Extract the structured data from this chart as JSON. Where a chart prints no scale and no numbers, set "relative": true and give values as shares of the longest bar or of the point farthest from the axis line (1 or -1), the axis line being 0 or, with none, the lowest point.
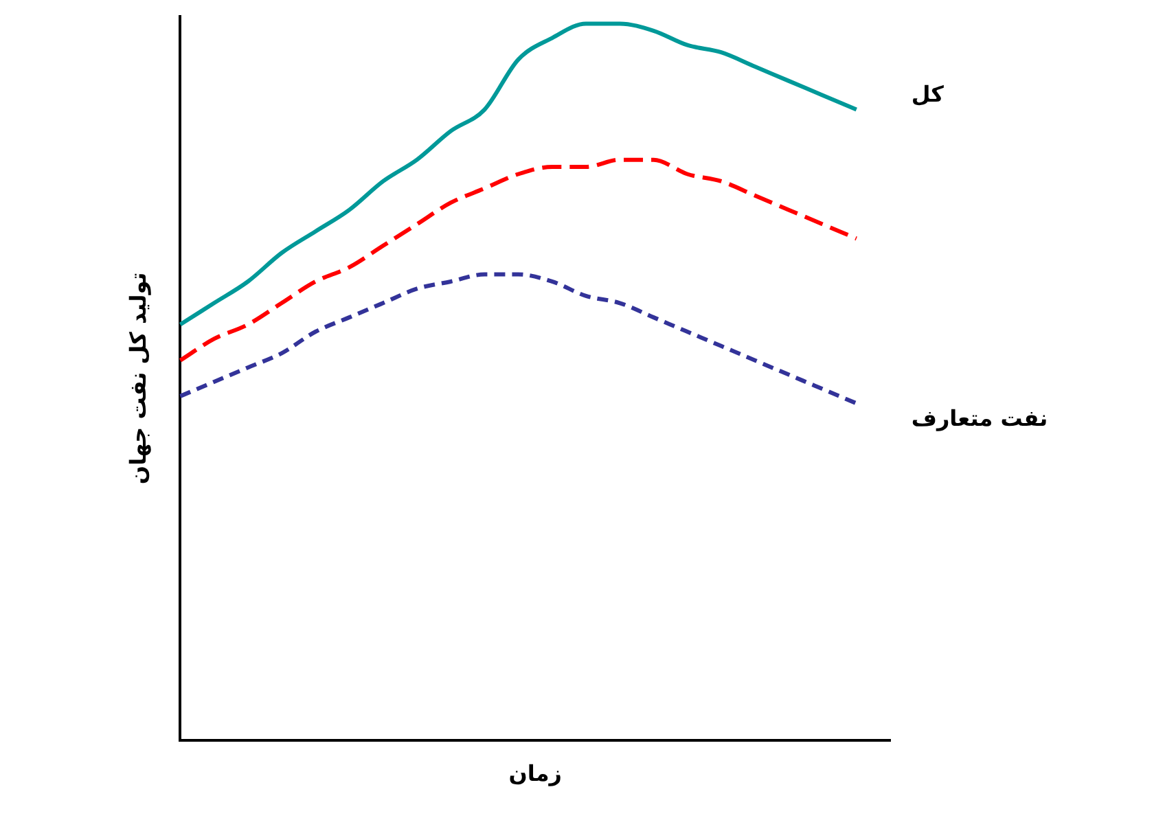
{
  "chart_data": {
    "type": "line",
    "relative": true,
    "xlabel": "زمان",
    "ylabel": "تولید کل نفت جهان",
    "legend": false,
    "grid": false,
    "categories": [
      null,
      null,
      null,
      null,
      null,
      null,
      null,
      null,
      null,
      null,
      null,
      null,
      null,
      null,
      null,
      null,
      null,
      null,
      null,
      null,
      null,
      null
    ],
    "series": [
      {
        "name": "کل",
        "color": "#009999",
        "line_style": "solid",
        "values": [
          0.58,
          0.61,
          0.64,
          0.68,
          0.71,
          0.74,
          0.78,
          0.81,
          0.85,
          0.88,
          0.95,
          0.98,
          1.0,
          1.0,
          0.99,
          0.97,
          0.96,
          0.94,
          0.92,
          0.9,
          0.88,
          null
        ]
      },
      {
        "color": "#ff0000",
        "line_style": "dashed",
        "values": [
          0.53,
          0.56,
          0.58,
          0.61,
          0.64,
          0.66,
          0.69,
          0.72,
          0.75,
          0.77,
          0.79,
          0.8,
          0.8,
          0.81,
          0.81,
          0.79,
          0.78,
          0.76,
          0.74,
          0.72,
          0.7,
          null
        ]
      },
      {
        "name": "نفت متعارف",
        "color": "#333399",
        "line_style": "dotted",
        "values": [
          0.48,
          0.5,
          0.52,
          0.54,
          0.57,
          0.59,
          0.61,
          0.63,
          0.64,
          0.65,
          0.65,
          0.64,
          0.62,
          0.61,
          0.59,
          0.57,
          0.55,
          0.53,
          0.51,
          0.49,
          0.47,
          null
        ]
      }
    ]
  }
}
